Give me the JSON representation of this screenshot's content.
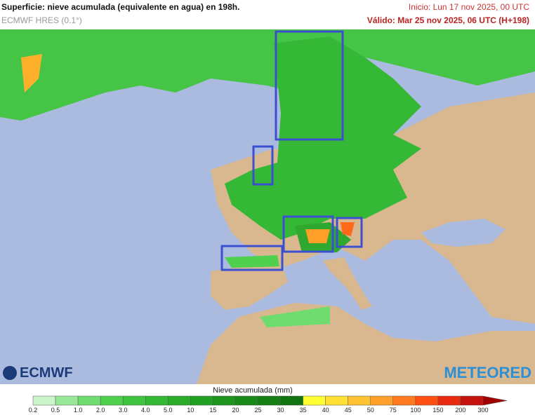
{
  "header": {
    "title": "Superficie: nieve acumulada (equivalente en agua) en 198h.",
    "model": "ECMWF HRES (0.1°)",
    "init": "Inicio: Lun 17 nov 2025, 00 UTC",
    "valid": "Válido: Mar 25 nov 2025, 06 UTC (H+198)"
  },
  "logos": {
    "left": "ECMWF",
    "right": "METEORED"
  },
  "colorbar": {
    "label": "Nieve acumulada (mm)",
    "ticks": [
      "0.2",
      "0.5",
      "1.0",
      "2.0",
      "3.0",
      "4.0",
      "5.0",
      "10",
      "15",
      "20",
      "25",
      "30",
      "35",
      "40",
      "45",
      "50",
      "75",
      "100",
      "150",
      "200",
      "300"
    ],
    "colors": [
      "#ccf5cc",
      "#99e899",
      "#6fdc6f",
      "#4fd04f",
      "#3fc43f",
      "#33b833",
      "#2aac2a",
      "#22a022",
      "#1d951d",
      "#198a19",
      "#157f15",
      "#117411",
      "#ffff33",
      "#ffe033",
      "#ffc233",
      "#ffa02a",
      "#ff7a1f",
      "#ff5014",
      "#e82a10",
      "#c4120c",
      "#a00000"
    ]
  }
}
